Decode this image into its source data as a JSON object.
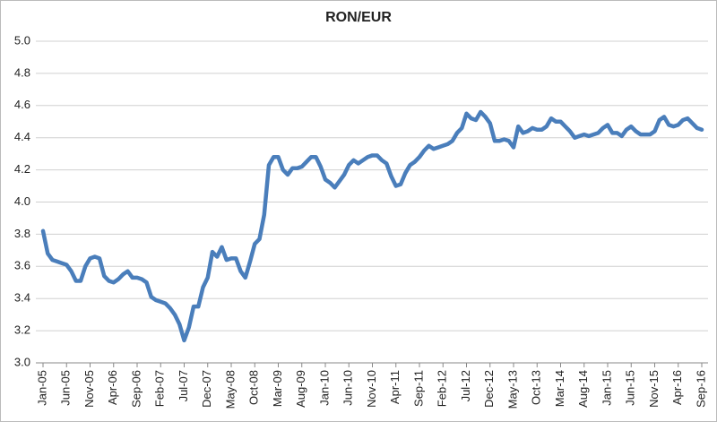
{
  "chart_data": {
    "type": "line",
    "title": "RON/EUR",
    "categories": [
      "Jan-05",
      null,
      null,
      null,
      null,
      "Jun-05",
      null,
      null,
      null,
      null,
      "Nov-05",
      null,
      null,
      null,
      null,
      "Apr-06",
      null,
      null,
      null,
      null,
      "Sep-06",
      null,
      null,
      null,
      null,
      "Feb-07",
      null,
      null,
      null,
      null,
      "Jul-07",
      null,
      null,
      null,
      null,
      "Dec-07",
      null,
      null,
      null,
      null,
      "May-08",
      null,
      null,
      null,
      null,
      "Oct-08",
      null,
      null,
      null,
      null,
      "Mar-09",
      null,
      null,
      null,
      null,
      "Aug-09",
      null,
      null,
      null,
      null,
      "Jan-10",
      null,
      null,
      null,
      null,
      "Jun-10",
      null,
      null,
      null,
      null,
      "Nov-10",
      null,
      null,
      null,
      null,
      "Apr-11",
      null,
      null,
      null,
      null,
      "Sep-11",
      null,
      null,
      null,
      null,
      "Feb-12",
      null,
      null,
      null,
      null,
      "Jul-12",
      null,
      null,
      null,
      null,
      "Dec-12",
      null,
      null,
      null,
      null,
      "May-13",
      null,
      null,
      null,
      null,
      "Oct-13",
      null,
      null,
      null,
      null,
      "Mar-14",
      null,
      null,
      null,
      null,
      "Aug-14",
      null,
      null,
      null,
      null,
      "Jan-15",
      null,
      null,
      null,
      null,
      "Jun-15",
      null,
      null,
      null,
      null,
      "Nov-15",
      null,
      null,
      null,
      null,
      "Apr-16",
      null,
      null,
      null,
      null,
      "Sep-16"
    ],
    "series": [
      {
        "name": "RON/EUR",
        "color": "#4a7ebb",
        "values": [
          3.82,
          3.68,
          3.64,
          3.63,
          3.62,
          3.61,
          3.57,
          3.51,
          3.51,
          3.6,
          3.65,
          3.66,
          3.65,
          3.54,
          3.51,
          3.5,
          3.52,
          3.55,
          3.57,
          3.53,
          3.53,
          3.52,
          3.5,
          3.41,
          3.39,
          3.38,
          3.37,
          3.34,
          3.3,
          3.24,
          3.14,
          3.22,
          3.35,
          3.35,
          3.47,
          3.53,
          3.69,
          3.66,
          3.72,
          3.64,
          3.65,
          3.65,
          3.57,
          3.53,
          3.63,
          3.74,
          3.77,
          3.92,
          4.23,
          4.28,
          4.28,
          4.2,
          4.17,
          4.21,
          4.21,
          4.22,
          4.25,
          4.28,
          4.28,
          4.22,
          4.14,
          4.12,
          4.09,
          4.13,
          4.17,
          4.23,
          4.26,
          4.24,
          4.26,
          4.28,
          4.29,
          4.29,
          4.26,
          4.24,
          4.16,
          4.1,
          4.11,
          4.18,
          4.23,
          4.25,
          4.28,
          4.32,
          4.35,
          4.33,
          4.34,
          4.35,
          4.36,
          4.38,
          4.43,
          4.46,
          4.55,
          4.52,
          4.51,
          4.56,
          4.53,
          4.49,
          4.38,
          4.38,
          4.39,
          4.38,
          4.34,
          4.47,
          4.43,
          4.44,
          4.46,
          4.45,
          4.45,
          4.47,
          4.52,
          4.5,
          4.5,
          4.47,
          4.44,
          4.4,
          4.41,
          4.42,
          4.41,
          4.42,
          4.43,
          4.46,
          4.48,
          4.43,
          4.43,
          4.41,
          4.45,
          4.47,
          4.44,
          4.42,
          4.42,
          4.42,
          4.44,
          4.51,
          4.53,
          4.48,
          4.47,
          4.48,
          4.51,
          4.52,
          4.49,
          4.46,
          4.45
        ]
      }
    ],
    "ylim": [
      3,
      5
    ],
    "yticks": [
      {
        "value": 3,
        "label": "3.0"
      },
      3.2,
      3.4,
      3.6,
      3.8,
      {
        "value": 4,
        "label": "4.0"
      },
      4.2,
      4.4,
      4.6,
      4.8,
      {
        "value": 5,
        "label": "5.0"
      }
    ],
    "grid": true
  }
}
